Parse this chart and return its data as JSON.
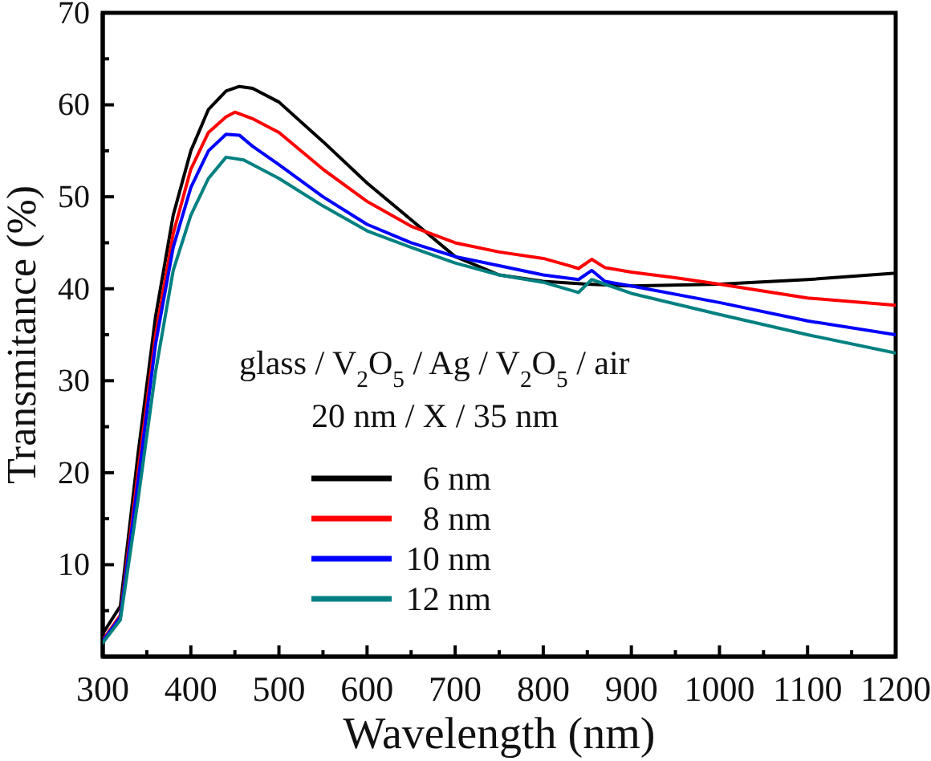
{
  "chart_data": {
    "type": "line",
    "xlabel": "Wavelength (nm)",
    "ylabel": "Transmitance (%)",
    "xlim": [
      300,
      1200
    ],
    "ylim": [
      0,
      70
    ],
    "xticks": [
      300,
      {
        "value": 350,
        "label": null
      },
      400,
      {
        "value": 450,
        "label": null
      },
      500,
      {
        "value": 550,
        "label": null
      },
      600,
      {
        "value": 650,
        "label": null
      },
      700,
      {
        "value": 750,
        "label": null
      },
      800,
      {
        "value": 850,
        "label": null
      },
      900,
      {
        "value": 950,
        "label": null
      },
      1000,
      {
        "value": 1050,
        "label": null
      },
      1100,
      {
        "value": 1150,
        "label": null
      },
      1200
    ],
    "yticks": [
      {
        "value": 5,
        "label": null
      },
      10,
      {
        "value": 15,
        "label": null
      },
      20,
      {
        "value": 25,
        "label": null
      },
      30,
      {
        "value": 35,
        "label": null
      },
      40,
      {
        "value": 45,
        "label": null
      },
      50,
      {
        "value": 55,
        "label": null
      },
      60,
      {
        "value": 65,
        "label": null
      },
      70
    ],
    "grid": false,
    "legend": "bottom",
    "marker": "none",
    "line_style": "solid",
    "annotations": [
      "glass / V$_{2}$O$_{5}$ /  Ag  / V$_{2}$O$_{5}$ / air",
      "20 nm /  X  / 35 nm"
    ],
    "series": [
      {
        "name": "6 nm",
        "color": "#000000",
        "x": [
          300,
          320,
          340,
          360,
          380,
          400,
          420,
          440,
          455,
          470,
          500,
          550,
          600,
          650,
          700,
          750,
          800,
          850,
          900,
          1000,
          1100,
          1200
        ],
        "values": [
          2.5,
          5.5,
          22,
          37,
          48,
          55,
          59.5,
          61.5,
          62,
          61.8,
          60.3,
          56,
          51.5,
          47.5,
          43.5,
          41.5,
          40.8,
          40.5,
          40.3,
          40.5,
          41,
          41.7
        ]
      },
      {
        "name": "8 nm",
        "color": "#ff0000",
        "x": [
          300,
          320,
          340,
          360,
          380,
          400,
          420,
          440,
          450,
          470,
          500,
          550,
          600,
          650,
          700,
          750,
          800,
          830,
          840,
          855,
          870,
          900,
          950,
          1000,
          1100,
          1200
        ],
        "values": [
          1.8,
          4.5,
          20,
          35,
          46,
          53,
          57,
          58.7,
          59.2,
          58.5,
          57,
          53,
          49.5,
          46.8,
          45,
          44,
          43.3,
          42.5,
          42.2,
          43.2,
          42.3,
          41.8,
          41.2,
          40.5,
          39,
          38.2
        ]
      },
      {
        "name": "10 nm",
        "color": "#0000ff",
        "x": [
          300,
          320,
          340,
          360,
          380,
          400,
          420,
          440,
          455,
          470,
          500,
          550,
          600,
          650,
          700,
          750,
          800,
          840,
          855,
          870,
          900,
          1000,
          1100,
          1200
        ],
        "values": [
          1.7,
          4.3,
          19,
          34,
          44.5,
          51,
          55,
          56.8,
          56.7,
          55.5,
          53.5,
          50,
          47,
          45,
          43.5,
          42.5,
          41.5,
          41,
          42,
          40.8,
          40.3,
          38.5,
          36.5,
          35
        ]
      },
      {
        "name": "12 nm",
        "color": "#008080",
        "x": [
          300,
          320,
          340,
          360,
          380,
          400,
          420,
          440,
          460,
          500,
          550,
          600,
          650,
          700,
          750,
          800,
          840,
          855,
          870,
          900,
          1000,
          1100,
          1200
        ],
        "values": [
          1.5,
          4,
          17,
          31,
          42,
          48,
          52,
          54.3,
          54,
          52,
          49,
          46.3,
          44.5,
          42.8,
          41.5,
          40.7,
          39.6,
          41,
          40.5,
          39.5,
          37.2,
          35,
          33
        ]
      }
    ]
  }
}
